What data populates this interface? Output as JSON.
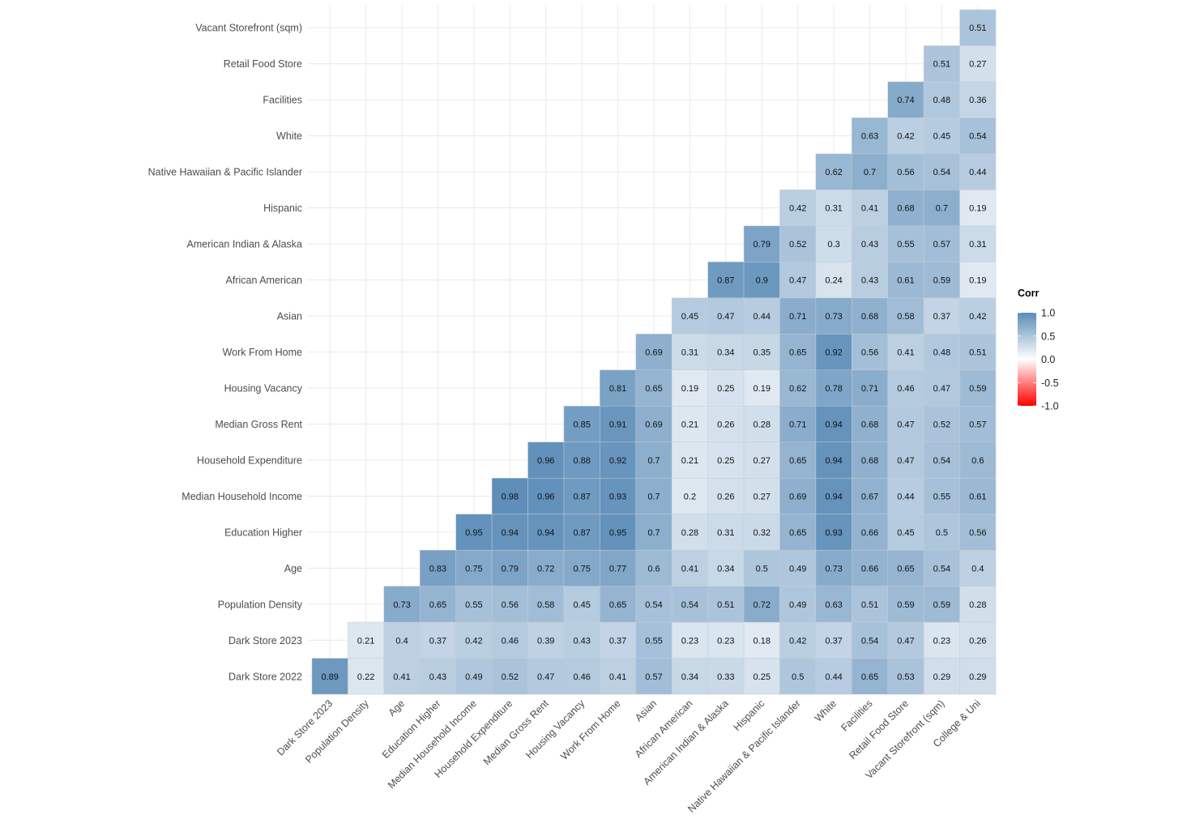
{
  "chart_data": {
    "type": "heatmap",
    "title": "",
    "xlabel": "",
    "ylabel": "",
    "x_categories": [
      "Dark Store 2023",
      "Population Density",
      "Age",
      "Education Higher",
      "Median Household Income",
      "Household Expenditure",
      "Median Gross Rent",
      "Housing Vacancy",
      "Work From Home",
      "Asian",
      "African American",
      "American Indian & Alaska",
      "Hispanic",
      "Native Hawaiian & Pacific Islander",
      "White",
      "Facilities",
      "Retail Food Store",
      "Vacant Storefront (sqm)",
      "College & Uni"
    ],
    "y_categories": [
      "Dark Store 2022",
      "Dark Store 2023",
      "Population Density",
      "Age",
      "Education Higher",
      "Median Household Income",
      "Household Expenditure",
      "Median Gross Rent",
      "Housing Vacancy",
      "Work From Home",
      "Asian",
      "African American",
      "American Indian & Alaska",
      "Hispanic",
      "Native Hawaiian & Pacific Islander",
      "White",
      "Facilities",
      "Retail Food Store",
      "Vacant Storefront (sqm)"
    ],
    "values_note": "rows[i] lists values for x columns i..18 (lower triangle)",
    "rows": [
      [
        0.89,
        0.22,
        0.41,
        0.43,
        0.49,
        0.52,
        0.47,
        0.46,
        0.41,
        0.57,
        0.34,
        0.33,
        0.25,
        0.5,
        0.44,
        0.65,
        0.53,
        0.29,
        0.29
      ],
      [
        0.21,
        0.4,
        0.37,
        0.42,
        0.46,
        0.39,
        0.43,
        0.37,
        0.55,
        0.23,
        0.23,
        0.18,
        0.42,
        0.37,
        0.54,
        0.47,
        0.23,
        0.26
      ],
      [
        0.73,
        0.65,
        0.55,
        0.56,
        0.58,
        0.45,
        0.65,
        0.54,
        0.54,
        0.51,
        0.72,
        0.49,
        0.63,
        0.51,
        0.59,
        0.59,
        0.28
      ],
      [
        0.83,
        0.75,
        0.79,
        0.72,
        0.75,
        0.77,
        0.6,
        0.41,
        0.34,
        0.5,
        0.49,
        0.73,
        0.66,
        0.65,
        0.54,
        0.4
      ],
      [
        0.95,
        0.94,
        0.94,
        0.87,
        0.95,
        0.7,
        0.28,
        0.31,
        0.32,
        0.65,
        0.93,
        0.66,
        0.45,
        0.5,
        0.56
      ],
      [
        0.98,
        0.96,
        0.87,
        0.93,
        0.7,
        0.2,
        0.26,
        0.27,
        0.69,
        0.94,
        0.67,
        0.44,
        0.55,
        0.61
      ],
      [
        0.96,
        0.88,
        0.92,
        0.7,
        0.21,
        0.25,
        0.27,
        0.65,
        0.94,
        0.68,
        0.47,
        0.54,
        0.6
      ],
      [
        0.85,
        0.91,
        0.69,
        0.21,
        0.26,
        0.28,
        0.71,
        0.94,
        0.68,
        0.47,
        0.52,
        0.57
      ],
      [
        0.81,
        0.65,
        0.19,
        0.25,
        0.19,
        0.62,
        0.78,
        0.71,
        0.46,
        0.47,
        0.59
      ],
      [
        0.69,
        0.31,
        0.34,
        0.35,
        0.65,
        0.92,
        0.56,
        0.41,
        0.48,
        0.51
      ],
      [
        0.45,
        0.47,
        0.44,
        0.71,
        0.73,
        0.68,
        0.58,
        0.37,
        0.42
      ],
      [
        0.87,
        0.9,
        0.47,
        0.24,
        0.43,
        0.61,
        0.59,
        0.19
      ],
      [
        0.79,
        0.52,
        0.3,
        0.43,
        0.55,
        0.57,
        0.31
      ],
      [
        0.42,
        0.31,
        0.41,
        0.68,
        0.7,
        0.19
      ],
      [
        0.62,
        0.7,
        0.56,
        0.54,
        0.44
      ],
      [
        0.63,
        0.42,
        0.45,
        0.54
      ],
      [
        0.74,
        0.48,
        0.36
      ],
      [
        0.51,
        0.27
      ],
      [
        0.51
      ]
    ],
    "legend": {
      "title": "Corr",
      "ticks": [
        "1.0",
        "0.5",
        "0.0",
        "-0.5",
        "-1.0"
      ],
      "tick_values": [
        1,
        0.5,
        0,
        -0.5,
        -1
      ],
      "range": [
        -1,
        1
      ],
      "placement": "right"
    },
    "colors": {
      "high": "#5b8cb8",
      "mid": "#ffffff",
      "low": "#ff0000",
      "grid": "#ebebeb",
      "cell_border": "#c8ccd2"
    },
    "grid": true
  }
}
